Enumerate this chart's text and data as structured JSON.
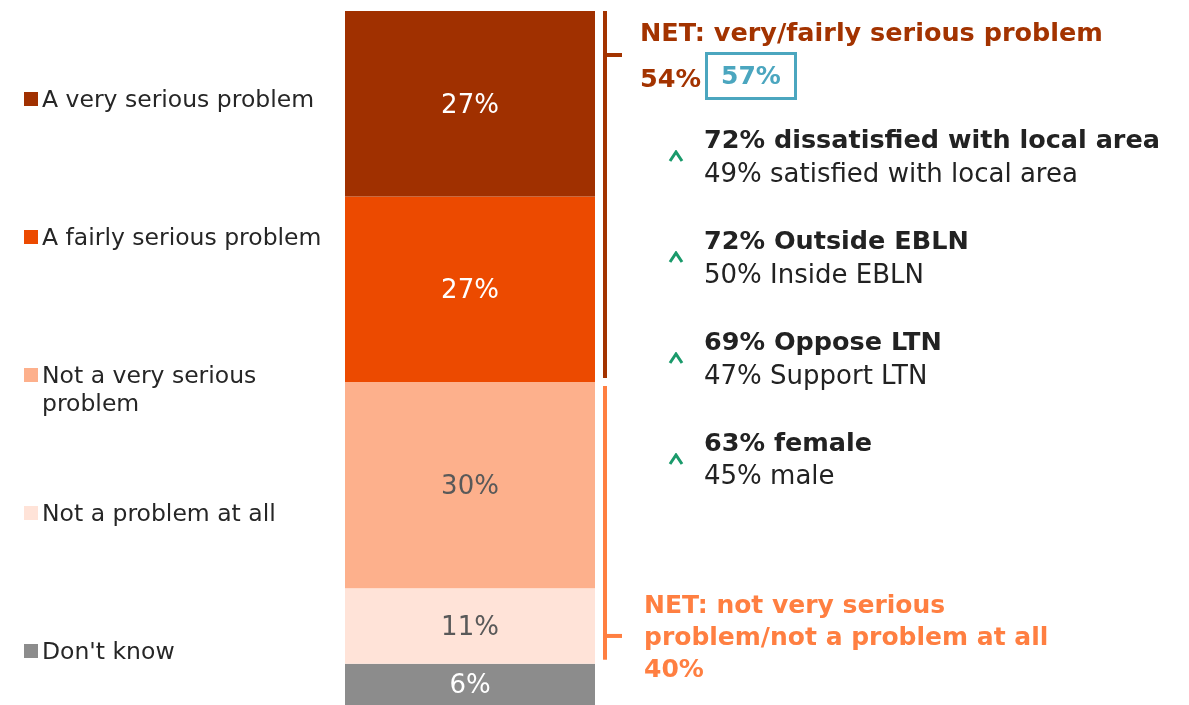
{
  "chart_data": {
    "type": "bar",
    "stacked": true,
    "categories": [
      null
    ],
    "series": [
      {
        "name": "Don't know",
        "color": "#8c8c8c",
        "values": [
          6
        ],
        "value_labels": [
          "6%"
        ]
      },
      {
        "name": "Not a problem at all",
        "color": "#ffe3d8",
        "values": [
          11
        ],
        "value_labels": [
          "11%"
        ]
      },
      {
        "name": "Not a very serious problem",
        "color": "#fdb08c",
        "values": [
          30
        ],
        "value_labels": [
          "30%"
        ]
      },
      {
        "name": "A fairly serious problem",
        "color": "#ec4a00",
        "values": [
          27
        ],
        "value_labels": [
          "27%"
        ]
      },
      {
        "name": "A very serious problem",
        "color": "#a03000",
        "values": [
          27
        ],
        "value_labels": [
          "27%"
        ]
      }
    ],
    "legend": "left",
    "tick_labels": false,
    "annotations": [
      "NET: very/fairly serious problem",
      "54%",
      "57%",
      "72% dissatisfied with local area",
      "49% satisfied with local area",
      "72% Outside EBLN",
      "50% Inside EBLN",
      "69% Oppose LTN",
      "47% Support LTN",
      "63% female",
      "45% male",
      "NET: not very serious problem/not a problem at all",
      "40%"
    ]
  }
}
